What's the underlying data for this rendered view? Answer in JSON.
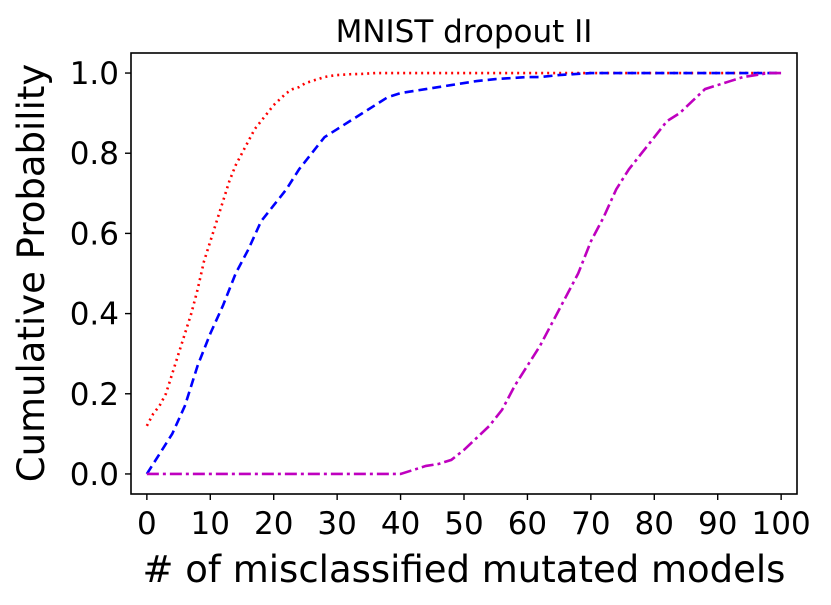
{
  "chart_data": {
    "type": "line",
    "title": "MNIST dropout II",
    "xlabel": "# of misclassified mutated models",
    "ylabel": "Cumulative Probability",
    "xlim": [
      -2.5,
      102.5
    ],
    "ylim": [
      -0.05,
      1.05
    ],
    "xticks": [
      "0",
      "10",
      "20",
      "30",
      "40",
      "50",
      "60",
      "70",
      "80",
      "90",
      "100"
    ],
    "yticks": [
      "0.0",
      "0.2",
      "0.4",
      "0.6",
      "0.8",
      "1.0"
    ],
    "grid": false,
    "series": [
      {
        "name": "red",
        "color": "#ff0000",
        "style": "dotted",
        "x": [
          0,
          1,
          2,
          3,
          4,
          5,
          6,
          7,
          8,
          9,
          10,
          11,
          12,
          13,
          14,
          15,
          16,
          17,
          18,
          19,
          20,
          21,
          22,
          23,
          24,
          25,
          26,
          27,
          28,
          29,
          30,
          32,
          34,
          36,
          38,
          40,
          50,
          60,
          70,
          80,
          90,
          100
        ],
        "y": [
          0.12,
          0.15,
          0.17,
          0.2,
          0.25,
          0.3,
          0.35,
          0.4,
          0.46,
          0.53,
          0.58,
          0.63,
          0.68,
          0.73,
          0.77,
          0.8,
          0.83,
          0.86,
          0.88,
          0.9,
          0.92,
          0.935,
          0.95,
          0.96,
          0.965,
          0.975,
          0.98,
          0.985,
          0.99,
          0.993,
          0.995,
          0.997,
          0.998,
          1.0,
          1.0,
          1.0,
          1.0,
          1.0,
          1.0,
          1.0,
          1.0,
          1.0
        ]
      },
      {
        "name": "blue",
        "color": "#0000ff",
        "style": "dashed",
        "x": [
          0,
          2,
          4,
          6,
          8,
          10,
          12,
          14,
          16,
          18,
          20,
          22,
          24,
          26,
          28,
          30,
          32,
          34,
          36,
          38,
          40,
          42,
          44,
          46,
          48,
          50,
          52,
          55,
          60,
          62,
          65,
          70,
          80,
          90,
          95,
          100
        ],
        "y": [
          0.0,
          0.05,
          0.1,
          0.17,
          0.27,
          0.35,
          0.42,
          0.5,
          0.56,
          0.63,
          0.67,
          0.71,
          0.76,
          0.8,
          0.84,
          0.86,
          0.88,
          0.9,
          0.92,
          0.94,
          0.95,
          0.955,
          0.96,
          0.965,
          0.97,
          0.975,
          0.98,
          0.985,
          0.99,
          0.99,
          0.995,
          1.0,
          1.0,
          1.0,
          1.0,
          1.0
        ]
      },
      {
        "name": "magenta",
        "color": "#bf00bf",
        "style": "dashdot",
        "x": [
          0,
          10,
          20,
          30,
          38,
          40,
          42,
          44,
          46,
          48,
          50,
          52,
          54,
          56,
          58,
          60,
          62,
          64,
          66,
          68,
          70,
          72,
          74,
          76,
          78,
          80,
          82,
          84,
          86,
          88,
          90,
          92,
          94,
          96,
          98,
          100
        ],
        "y": [
          0.0,
          0.0,
          0.0,
          0.0,
          0.0,
          0.0,
          0.01,
          0.02,
          0.025,
          0.035,
          0.06,
          0.09,
          0.12,
          0.16,
          0.22,
          0.27,
          0.32,
          0.38,
          0.44,
          0.5,
          0.58,
          0.64,
          0.71,
          0.76,
          0.8,
          0.84,
          0.88,
          0.9,
          0.93,
          0.96,
          0.97,
          0.98,
          0.99,
          0.995,
          1.0,
          1.0
        ]
      }
    ]
  }
}
